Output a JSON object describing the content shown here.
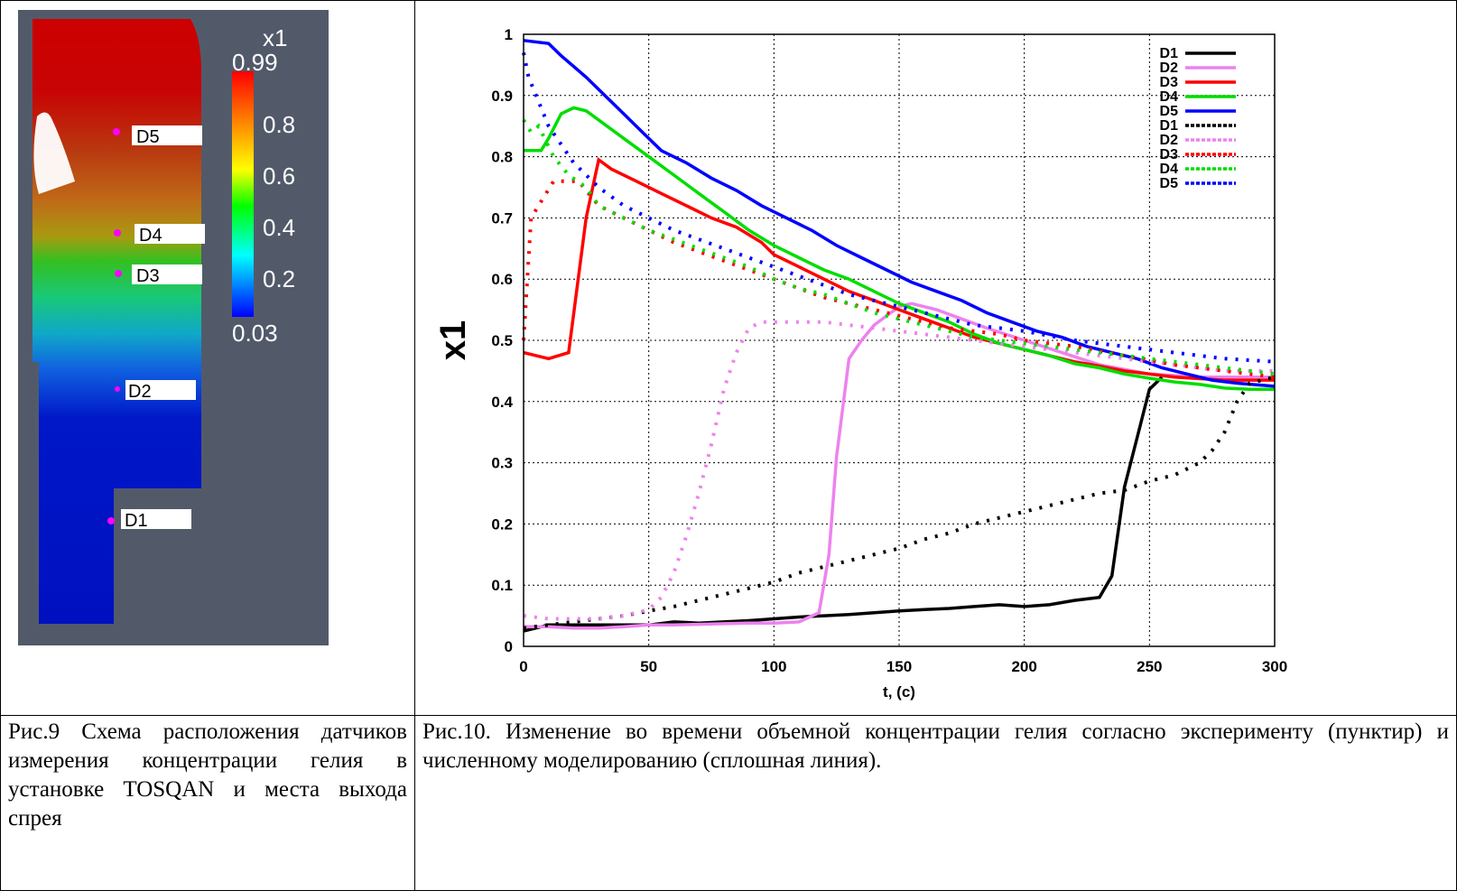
{
  "figure9": {
    "sensor_labels": [
      "D5",
      "D4",
      "D3",
      "D2",
      "D1"
    ],
    "colorbar": {
      "title": "x1",
      "max_label": "0.99",
      "min_label": "0.03",
      "tick_labels": [
        "0.8",
        "0.6",
        "0.4",
        "0.2"
      ],
      "gradient_colors": [
        "#ff0000",
        "#ff8000",
        "#ffff00",
        "#00ff00",
        "#00ffff",
        "#0000ff"
      ]
    },
    "background_color": "#525a6a",
    "sensor_marker_color": "#ff00ff"
  },
  "captions": {
    "fig9": "Рис.9 Схема расположения датчиков измерения концентрации гелия в установке TOSQAN и места выхода спрея",
    "fig10": "Рис.10. Изменение во времени объемной концентрации гелия согласно эксперименту (пунктир) и численному моделированию (сплошная линия)."
  },
  "chart_data": {
    "type": "line",
    "xlabel": "t, (c)",
    "ylabel": "x1",
    "xlim": [
      0,
      300
    ],
    "ylim": [
      0,
      1
    ],
    "x_ticks": [
      "0",
      "50",
      "100",
      "150",
      "200",
      "250",
      "300"
    ],
    "y_ticks": [
      "0",
      "0.1",
      "0.2",
      "0.3",
      "0.4",
      "0.5",
      "0.6",
      "0.7",
      "0.8",
      "0.9",
      "1"
    ],
    "grid": true,
    "legend_position": "top-right",
    "series": [
      {
        "name": "D1",
        "style": "solid",
        "color": "#000000",
        "x": [
          0,
          5,
          10,
          20,
          30,
          40,
          50,
          60,
          70,
          80,
          90,
          100,
          110,
          120,
          130,
          140,
          150,
          160,
          170,
          180,
          190,
          200,
          210,
          220,
          230,
          235,
          240,
          245,
          250,
          255
        ],
        "y": [
          0.025,
          0.03,
          0.035,
          0.035,
          0.035,
          0.035,
          0.035,
          0.04,
          0.038,
          0.04,
          0.042,
          0.045,
          0.048,
          0.05,
          0.052,
          0.055,
          0.058,
          0.06,
          0.062,
          0.065,
          0.068,
          0.065,
          0.068,
          0.075,
          0.08,
          0.115,
          0.26,
          0.34,
          0.42,
          0.44
        ]
      },
      {
        "name": "D2",
        "style": "solid",
        "color": "#ee82ee",
        "x": [
          0,
          10,
          20,
          30,
          40,
          50,
          60,
          70,
          80,
          90,
          100,
          110,
          118,
          122,
          125,
          130,
          135,
          140,
          145,
          150,
          155,
          165,
          175,
          185,
          200,
          215,
          230,
          250,
          270,
          300
        ],
        "y": [
          0.032,
          0.032,
          0.03,
          0.03,
          0.032,
          0.035,
          0.035,
          0.036,
          0.037,
          0.038,
          0.038,
          0.04,
          0.055,
          0.15,
          0.31,
          0.47,
          0.5,
          0.525,
          0.54,
          0.555,
          0.56,
          0.55,
          0.535,
          0.52,
          0.5,
          0.48,
          0.46,
          0.445,
          0.44,
          0.44
        ]
      },
      {
        "name": "D3",
        "style": "solid",
        "color": "#ff0000",
        "x": [
          0,
          10,
          18,
          25,
          30,
          35,
          45,
          55,
          65,
          75,
          85,
          95,
          100,
          110,
          120,
          130,
          140,
          150,
          160,
          170,
          180,
          190,
          200,
          210,
          220,
          230,
          240,
          250,
          260,
          280,
          300
        ],
        "y": [
          0.48,
          0.47,
          0.48,
          0.7,
          0.795,
          0.78,
          0.76,
          0.74,
          0.72,
          0.7,
          0.685,
          0.66,
          0.64,
          0.62,
          0.6,
          0.58,
          0.565,
          0.55,
          0.535,
          0.52,
          0.505,
          0.495,
          0.485,
          0.475,
          0.465,
          0.458,
          0.45,
          0.445,
          0.44,
          0.435,
          0.435
        ]
      },
      {
        "name": "D4",
        "style": "solid",
        "color": "#00dd00",
        "x": [
          0,
          7,
          10,
          15,
          20,
          25,
          30,
          40,
          50,
          60,
          70,
          80,
          90,
          100,
          110,
          120,
          130,
          140,
          150,
          160,
          170,
          180,
          190,
          200,
          210,
          220,
          230,
          240,
          250,
          260,
          270,
          280,
          290,
          300
        ],
        "y": [
          0.81,
          0.81,
          0.83,
          0.87,
          0.88,
          0.875,
          0.86,
          0.83,
          0.8,
          0.77,
          0.74,
          0.71,
          0.68,
          0.655,
          0.635,
          0.615,
          0.6,
          0.58,
          0.56,
          0.545,
          0.53,
          0.51,
          0.495,
          0.485,
          0.475,
          0.462,
          0.455,
          0.445,
          0.438,
          0.432,
          0.428,
          0.422,
          0.42,
          0.42
        ]
      },
      {
        "name": "D5",
        "style": "solid",
        "color": "#0000ff",
        "x": [
          0,
          10,
          15,
          25,
          35,
          45,
          55,
          65,
          75,
          85,
          95,
          105,
          115,
          125,
          135,
          145,
          155,
          165,
          175,
          185,
          195,
          205,
          215,
          225,
          235,
          245,
          255,
          265,
          275,
          285,
          300
        ],
        "y": [
          0.99,
          0.985,
          0.965,
          0.93,
          0.89,
          0.85,
          0.81,
          0.79,
          0.765,
          0.745,
          0.72,
          0.7,
          0.68,
          0.655,
          0.635,
          0.615,
          0.595,
          0.58,
          0.565,
          0.545,
          0.53,
          0.515,
          0.505,
          0.49,
          0.48,
          0.47,
          0.455,
          0.445,
          0.435,
          0.43,
          0.425
        ]
      },
      {
        "name": "D1",
        "style": "dashed",
        "color": "#000000",
        "x": [
          0,
          10,
          20,
          30,
          40,
          50,
          60,
          70,
          80,
          90,
          100,
          110,
          120,
          130,
          140,
          150,
          160,
          170,
          180,
          190,
          200,
          210,
          220,
          230,
          240,
          250,
          260,
          265,
          270,
          275,
          280,
          285,
          290,
          300
        ],
        "y": [
          0.03,
          0.035,
          0.04,
          0.045,
          0.05,
          0.058,
          0.065,
          0.075,
          0.085,
          0.095,
          0.105,
          0.12,
          0.13,
          0.14,
          0.15,
          0.16,
          0.175,
          0.185,
          0.2,
          0.21,
          0.22,
          0.23,
          0.24,
          0.25,
          0.255,
          0.27,
          0.28,
          0.29,
          0.3,
          0.32,
          0.35,
          0.4,
          0.43,
          0.44
        ]
      },
      {
        "name": "D2",
        "style": "dashed",
        "color": "#ee82ee",
        "x": [
          0,
          10,
          20,
          30,
          40,
          50,
          55,
          60,
          65,
          70,
          75,
          80,
          85,
          90,
          95,
          100,
          110,
          120,
          130,
          140,
          150,
          160,
          170,
          180,
          190,
          200,
          210,
          220,
          230,
          240,
          250,
          260,
          270,
          280,
          290,
          300
        ],
        "y": [
          0.05,
          0.045,
          0.045,
          0.045,
          0.05,
          0.06,
          0.08,
          0.12,
          0.18,
          0.25,
          0.33,
          0.42,
          0.48,
          0.52,
          0.53,
          0.53,
          0.53,
          0.53,
          0.525,
          0.52,
          0.515,
          0.51,
          0.505,
          0.5,
          0.495,
          0.49,
          0.485,
          0.48,
          0.475,
          0.47,
          0.465,
          0.46,
          0.455,
          0.45,
          0.45,
          0.45
        ]
      },
      {
        "name": "D3",
        "style": "dashed",
        "color": "#ff0000",
        "x": [
          0,
          3,
          6,
          12,
          18,
          22,
          26,
          30,
          40,
          50,
          60,
          70,
          80,
          90,
          100,
          110,
          120,
          130,
          140,
          150,
          160,
          170,
          180,
          190,
          200,
          220,
          240,
          260,
          280,
          300
        ],
        "y": [
          0.5,
          0.7,
          0.72,
          0.76,
          0.76,
          0.76,
          0.74,
          0.72,
          0.7,
          0.68,
          0.66,
          0.645,
          0.63,
          0.615,
          0.6,
          0.585,
          0.57,
          0.56,
          0.55,
          0.54,
          0.53,
          0.52,
          0.515,
          0.51,
          0.5,
          0.49,
          0.475,
          0.46,
          0.45,
          0.44
        ]
      },
      {
        "name": "D4",
        "style": "dashed",
        "color": "#00dd00",
        "x": [
          0,
          3,
          6,
          12,
          18,
          25,
          30,
          40,
          50,
          60,
          70,
          80,
          90,
          100,
          110,
          120,
          130,
          140,
          150,
          160,
          170,
          180,
          190,
          200,
          220,
          240,
          260,
          280,
          300
        ],
        "y": [
          0.86,
          0.84,
          0.85,
          0.8,
          0.77,
          0.75,
          0.72,
          0.7,
          0.68,
          0.665,
          0.65,
          0.635,
          0.62,
          0.6,
          0.585,
          0.575,
          0.56,
          0.545,
          0.535,
          0.525,
          0.515,
          0.505,
          0.5,
          0.495,
          0.485,
          0.475,
          0.465,
          0.455,
          0.445
        ]
      },
      {
        "name": "D5",
        "style": "dashed",
        "color": "#0000ff",
        "x": [
          0,
          2,
          5,
          10,
          15,
          20,
          25,
          30,
          40,
          50,
          60,
          70,
          80,
          90,
          100,
          110,
          120,
          130,
          140,
          150,
          160,
          170,
          180,
          190,
          200,
          220,
          240,
          260,
          280,
          300
        ],
        "y": [
          0.97,
          0.93,
          0.9,
          0.85,
          0.82,
          0.79,
          0.77,
          0.75,
          0.72,
          0.7,
          0.68,
          0.665,
          0.65,
          0.635,
          0.62,
          0.605,
          0.59,
          0.575,
          0.565,
          0.555,
          0.545,
          0.535,
          0.525,
          0.52,
          0.515,
          0.5,
          0.49,
          0.48,
          0.47,
          0.465
        ]
      }
    ]
  }
}
